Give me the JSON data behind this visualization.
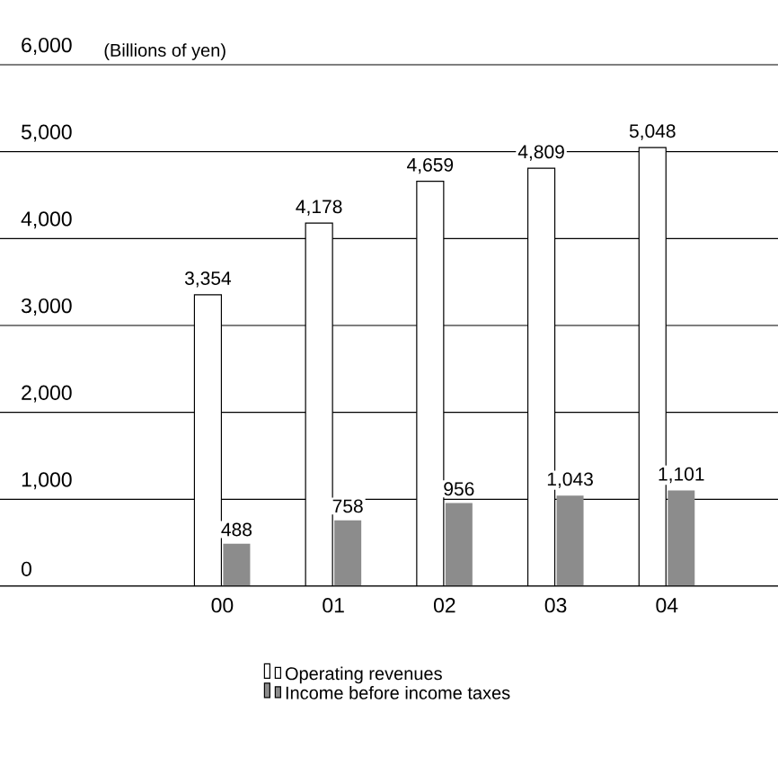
{
  "chart_data": {
    "type": "bar",
    "ylabel": "(Billions of yen)",
    "categories": [
      "00",
      "01",
      "02",
      "03",
      "04"
    ],
    "series": [
      {
        "name": "Operating revenues",
        "color": "#ffffff",
        "values": [
          3354,
          4178,
          4659,
          4809,
          5048
        ],
        "value_labels": [
          "3,354",
          "4,178",
          "4,659",
          "4,809",
          "5,048"
        ]
      },
      {
        "name": "Income before income taxes",
        "color": "#8c8c8c",
        "values": [
          488,
          758,
          956,
          1043,
          1101
        ],
        "value_labels": [
          "488",
          "758",
          "956",
          "1,043",
          "1,101"
        ]
      }
    ],
    "ylim": [
      0,
      6000
    ],
    "yticks": [
      {
        "value": 0,
        "label": "0"
      },
      {
        "value": 1000,
        "label": "1,000"
      },
      {
        "value": 2000,
        "label": "2,000"
      },
      {
        "value": 3000,
        "label": "3,000"
      },
      {
        "value": 4000,
        "label": "4,000"
      },
      {
        "value": 5000,
        "label": "5,000"
      },
      {
        "value": 6000,
        "label": "6,000"
      }
    ],
    "grid": "y",
    "legend": "bottom"
  }
}
